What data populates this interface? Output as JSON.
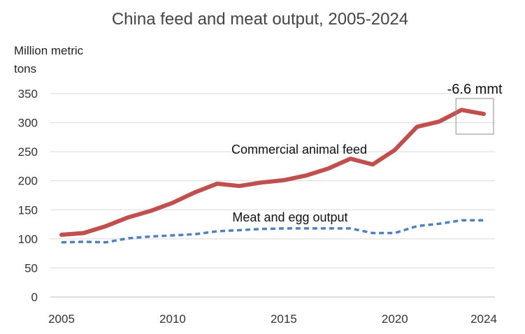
{
  "chart_data": {
    "type": "line",
    "title": "China feed and meat output, 2005-2024",
    "ylabel": [
      "Million metric",
      "tons"
    ],
    "xlabel": "",
    "x": [
      2005,
      2006,
      2007,
      2008,
      2009,
      2010,
      2011,
      2012,
      2013,
      2014,
      2015,
      2016,
      2017,
      2018,
      2019,
      2020,
      2021,
      2022,
      2023,
      2024
    ],
    "ylim": [
      0,
      350
    ],
    "yticks": [
      0,
      50,
      100,
      150,
      200,
      250,
      300,
      350
    ],
    "xticks": [
      2005,
      2010,
      2015,
      2020,
      2024
    ],
    "grid": true,
    "series": [
      {
        "name": "Commercial animal feed",
        "style": "solid",
        "color": "#C0504D",
        "values": [
          107,
          110,
          122,
          137,
          148,
          162,
          180,
          195,
          191,
          197,
          201,
          209,
          221,
          238,
          228,
          253,
          293,
          302,
          322,
          315
        ]
      },
      {
        "name": "Meat and egg output",
        "style": "dashed",
        "color": "#4F81BD",
        "values": [
          94,
          95,
          94,
          101,
          104,
          106,
          108,
          113,
          115,
          117,
          118,
          118,
          118,
          118,
          110,
          110,
          122,
          126,
          132,
          132
        ]
      }
    ],
    "annotations": [
      {
        "text": "-6.6 mmt",
        "x_range": [
          2023,
          2024
        ]
      }
    ]
  }
}
